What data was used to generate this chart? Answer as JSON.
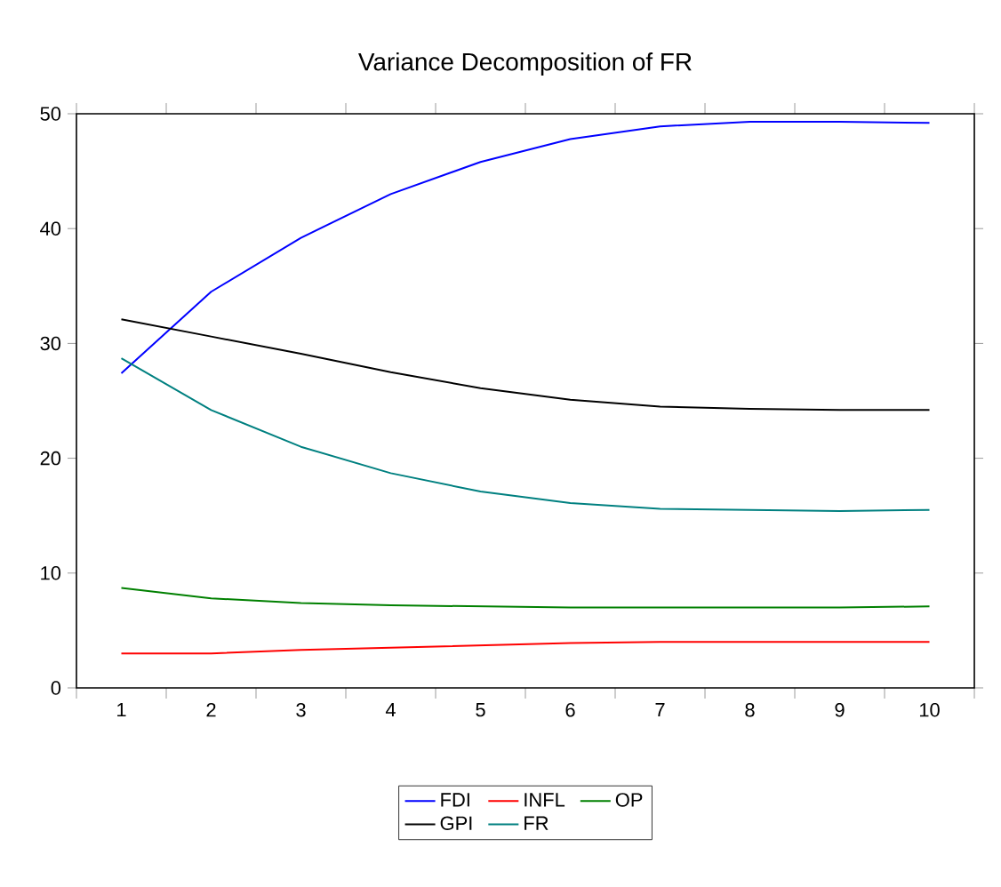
{
  "chart_data": {
    "type": "line",
    "title": "Variance Decomposition of FR",
    "categories": [
      "1",
      "2",
      "3",
      "4",
      "5",
      "6",
      "7",
      "8",
      "9",
      "10"
    ],
    "series": [
      {
        "name": "FDI",
        "color": "#0000ff",
        "values": [
          27.4,
          34.5,
          39.2,
          43.0,
          45.8,
          47.8,
          48.9,
          49.3,
          49.3,
          49.2
        ]
      },
      {
        "name": "INFL",
        "color": "#ff0000",
        "values": [
          3.0,
          3.0,
          3.3,
          3.5,
          3.7,
          3.9,
          4.0,
          4.0,
          4.0,
          4.0
        ]
      },
      {
        "name": "OP",
        "color": "#008000",
        "values": [
          8.7,
          7.8,
          7.4,
          7.2,
          7.1,
          7.0,
          7.0,
          7.0,
          7.0,
          7.1
        ]
      },
      {
        "name": "GPI",
        "color": "#000000",
        "values": [
          32.1,
          30.6,
          29.1,
          27.5,
          26.1,
          25.1,
          24.5,
          24.3,
          24.2,
          24.2
        ]
      },
      {
        "name": "FR",
        "color": "#008080",
        "values": [
          28.7,
          24.2,
          21.0,
          18.7,
          17.1,
          16.1,
          15.6,
          15.5,
          15.4,
          15.5
        ]
      }
    ],
    "ylim": [
      0,
      50
    ],
    "yticks": [
      0,
      10,
      20,
      30,
      40,
      50
    ],
    "grid": false,
    "legend": "bottom",
    "line_style": "solid",
    "marker": "none"
  }
}
